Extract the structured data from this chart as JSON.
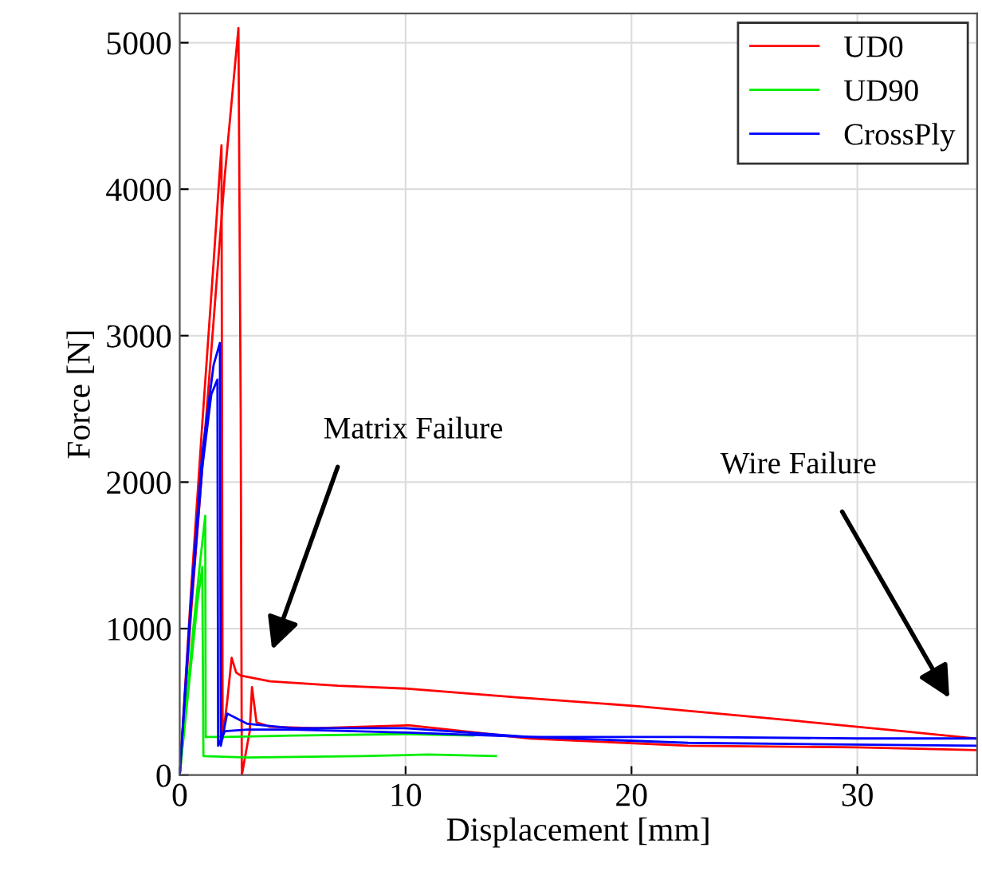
{
  "chart_data": {
    "type": "line",
    "xlabel": "Displacement [mm]",
    "ylabel": "Force [N]",
    "xlim": [
      0,
      35.3
    ],
    "ylim": [
      0,
      5200
    ],
    "xticks": [
      0,
      10,
      20,
      30
    ],
    "yticks": [
      0,
      1000,
      2000,
      3000,
      4000,
      5000
    ],
    "grid": true,
    "legend": "top right",
    "line_style": "solid",
    "marker": "none",
    "series": [
      {
        "name": "UD0",
        "color": "#ff0000",
        "x": [
          0,
          0.5,
          1.0,
          1.5,
          2.0,
          2.6,
          2.7,
          2.75,
          3.1,
          3.2,
          3.4,
          4,
          6,
          10.1,
          15.5,
          22.5,
          30,
          35.3
        ],
        "values": [
          0,
          1100,
          2100,
          3100,
          4100,
          5100,
          2500,
          0,
          300,
          600,
          360,
          330,
          320,
          340,
          250,
          200,
          190,
          170
        ]
      },
      {
        "color": "#ff0000",
        "x": [
          0,
          0.5,
          1.0,
          1.5,
          1.85,
          1.9,
          2.1,
          2.3,
          2.5,
          2.7,
          4,
          7,
          10.1,
          15,
          20.3,
          27.3,
          32,
          35.2
        ],
        "values": [
          0,
          1250,
          2400,
          3500,
          4300,
          250,
          500,
          800,
          700,
          680,
          640,
          610,
          590,
          530,
          470,
          370,
          300,
          250
        ]
      },
      {
        "name": "UD90",
        "color": "#00ee00",
        "x": [
          0,
          0.3,
          0.6,
          0.9,
          1.13,
          1.15,
          2,
          5,
          10,
          13
        ],
        "values": [
          0,
          500,
          1000,
          1450,
          1770,
          260,
          260,
          270,
          280,
          270
        ]
      },
      {
        "color": "#00ee00",
        "x": [
          0,
          0.3,
          0.6,
          0.8,
          1.0,
          1.05,
          3,
          8,
          11,
          14
        ],
        "values": [
          0,
          450,
          900,
          1200,
          1420,
          130,
          120,
          130,
          140,
          130
        ]
      },
      {
        "name": "CrossPly",
        "color": "#0000ff",
        "x": [
          0,
          0.5,
          1.0,
          1.5,
          1.78,
          1.82,
          1.95,
          2.1,
          3,
          5,
          10,
          15.5,
          22.5,
          30,
          35.3
        ],
        "values": [
          0,
          1200,
          2200,
          2800,
          2950,
          200,
          300,
          420,
          350,
          320,
          320,
          260,
          260,
          250,
          250
        ]
      },
      {
        "color": "#0000ff",
        "x": [
          0,
          0.5,
          1.0,
          1.4,
          1.67,
          1.7,
          2.0,
          3,
          5,
          10.1,
          15.5,
          22.5,
          35.3
        ],
        "values": [
          0,
          1150,
          2100,
          2600,
          2700,
          200,
          300,
          310,
          310,
          290,
          260,
          220,
          200
        ]
      }
    ],
    "annotations": [
      "Matrix Failure",
      "Wire Failure"
    ]
  }
}
